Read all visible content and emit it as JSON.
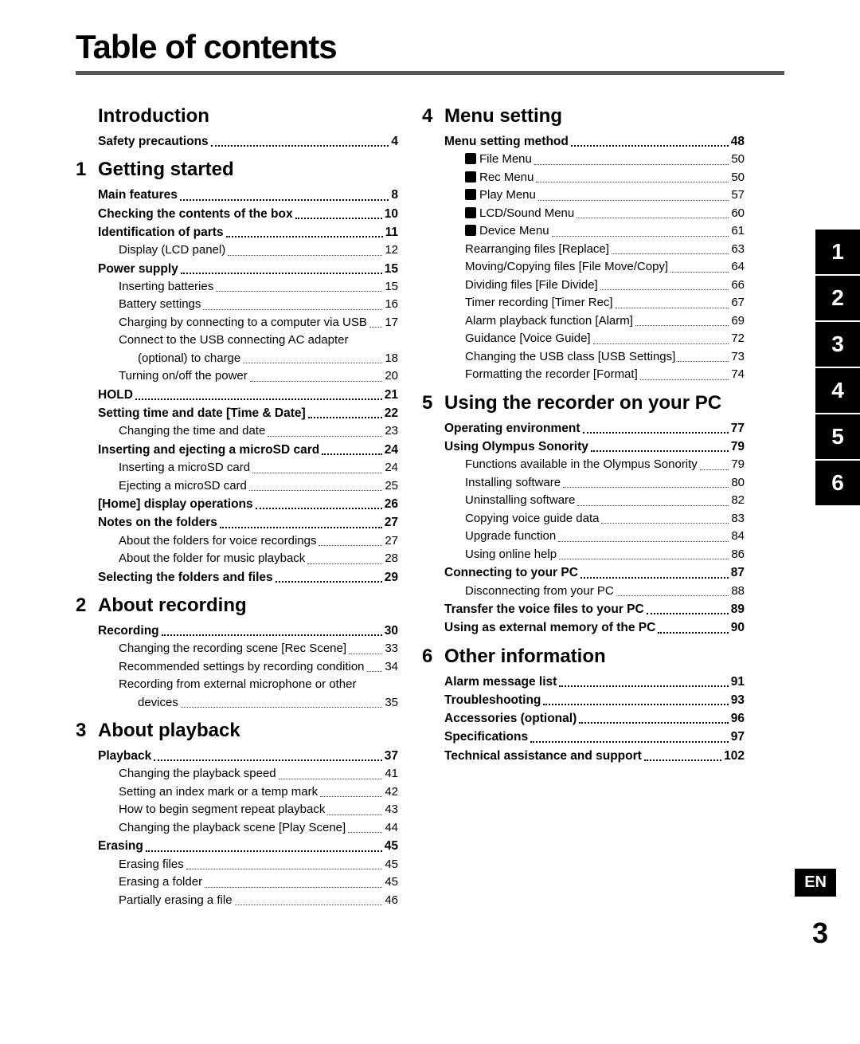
{
  "title": "Table of contents",
  "colors": {
    "accent": "#000000",
    "rule": "#555555",
    "text": "#000000",
    "bg": "#ffffff"
  },
  "sections": [
    {
      "num": "",
      "title": "Introduction",
      "col": 0,
      "items": [
        {
          "level": 1,
          "bold": true,
          "label": "Safety precautions",
          "page": "4"
        }
      ]
    },
    {
      "num": "1",
      "title": "Getting started",
      "col": 0,
      "items": [
        {
          "level": 1,
          "bold": true,
          "label": "Main features",
          "page": "8"
        },
        {
          "level": 1,
          "bold": true,
          "label": "Checking the contents of the box",
          "page": "10"
        },
        {
          "level": 1,
          "bold": true,
          "label": "Identification of parts",
          "page": "11"
        },
        {
          "level": 2,
          "bold": false,
          "label": "Display (LCD panel)",
          "page": "12"
        },
        {
          "level": 1,
          "bold": true,
          "label": "Power supply",
          "page": "15"
        },
        {
          "level": 2,
          "bold": false,
          "label": "Inserting batteries",
          "page": "15"
        },
        {
          "level": 2,
          "bold": false,
          "label": "Battery settings",
          "page": "16"
        },
        {
          "level": 2,
          "bold": false,
          "label": "Charging by connecting to a computer via USB",
          "page": "17"
        },
        {
          "level": 2,
          "bold": false,
          "label_pre": "Connect to the USB connecting AC adapter",
          "label": "(optional) to charge",
          "page": "18",
          "wrap_indent": 3
        },
        {
          "level": 2,
          "bold": false,
          "label": "Turning on/off the power",
          "page": "20"
        },
        {
          "level": 1,
          "bold": true,
          "label": "HOLD",
          "page": "21"
        },
        {
          "level": 1,
          "bold": true,
          "label": "Setting time and date [Time & Date]",
          "page": "22"
        },
        {
          "level": 2,
          "bold": false,
          "label": "Changing the time and date",
          "page": "23"
        },
        {
          "level": 1,
          "bold": true,
          "label": "Inserting and ejecting a microSD card",
          "page": "24"
        },
        {
          "level": 2,
          "bold": false,
          "label": "Inserting a microSD card",
          "page": "24"
        },
        {
          "level": 2,
          "bold": false,
          "label": "Ejecting a microSD card",
          "page": "25"
        },
        {
          "level": 1,
          "bold": true,
          "label": "[Home] display operations",
          "page": "26"
        },
        {
          "level": 1,
          "bold": true,
          "label": "Notes on the folders",
          "page": "27"
        },
        {
          "level": 2,
          "bold": false,
          "label": "About the folders for voice recordings",
          "page": "27"
        },
        {
          "level": 2,
          "bold": false,
          "label": "About the folder for music playback",
          "page": "28"
        },
        {
          "level": 1,
          "bold": true,
          "label": "Selecting the folders and files",
          "page": "29"
        }
      ]
    },
    {
      "num": "2",
      "title": "About recording",
      "col": 0,
      "items": [
        {
          "level": 1,
          "bold": true,
          "label": "Recording",
          "page": "30"
        },
        {
          "level": 2,
          "bold": false,
          "label": "Changing the recording scene [Rec Scene]",
          "page": "33"
        },
        {
          "level": 2,
          "bold": false,
          "label": "Recommended settings by recording condition",
          "page": "34"
        },
        {
          "level": 2,
          "bold": false,
          "label_pre": "Recording from external microphone or other",
          "label": "devices",
          "page": "35",
          "wrap_indent": 3
        }
      ]
    },
    {
      "num": "3",
      "title": "About playback",
      "col": 0,
      "items": [
        {
          "level": 1,
          "bold": true,
          "label": "Playback",
          "page": "37"
        },
        {
          "level": 2,
          "bold": false,
          "label": "Changing the playback speed",
          "page": "41"
        },
        {
          "level": 2,
          "bold": false,
          "label": "Setting an index mark or a temp mark",
          "page": "42"
        },
        {
          "level": 2,
          "bold": false,
          "label": "How to begin segment repeat playback",
          "page": "43"
        },
        {
          "level": 2,
          "bold": false,
          "label": "Changing the playback scene [Play Scene]",
          "page": "44"
        },
        {
          "level": 1,
          "bold": true,
          "label": "Erasing",
          "page": "45"
        },
        {
          "level": 2,
          "bold": false,
          "label": "Erasing files",
          "page": "45"
        },
        {
          "level": 2,
          "bold": false,
          "label": "Erasing a folder",
          "page": "45"
        },
        {
          "level": 2,
          "bold": false,
          "label": "Partially erasing a file",
          "page": "46"
        }
      ]
    },
    {
      "num": "4",
      "title": "Menu setting",
      "col": 1,
      "items": [
        {
          "level": 1,
          "bold": true,
          "label": "Menu setting method",
          "page": "48"
        },
        {
          "level": 2,
          "bold": false,
          "icon": true,
          "label": "File Menu",
          "page": "50"
        },
        {
          "level": 2,
          "bold": false,
          "icon": true,
          "label": "Rec Menu",
          "page": "50"
        },
        {
          "level": 2,
          "bold": false,
          "icon": true,
          "label": "Play Menu",
          "page": "57"
        },
        {
          "level": 2,
          "bold": false,
          "icon": true,
          "label": "LCD/Sound Menu",
          "page": "60"
        },
        {
          "level": 2,
          "bold": false,
          "icon": true,
          "label": "Device Menu",
          "page": "61"
        },
        {
          "level": 2,
          "bold": false,
          "label": "Rearranging files [Replace]",
          "page": "63"
        },
        {
          "level": 2,
          "bold": false,
          "label": "Moving/Copying files [File Move/Copy]",
          "page": "64"
        },
        {
          "level": 2,
          "bold": false,
          "label": "Dividing files [File Divide]",
          "page": "66"
        },
        {
          "level": 2,
          "bold": false,
          "label": "Timer recording [Timer Rec]",
          "page": "67"
        },
        {
          "level": 2,
          "bold": false,
          "label": "Alarm playback function [Alarm]",
          "page": "69"
        },
        {
          "level": 2,
          "bold": false,
          "label": "Guidance [Voice Guide]",
          "page": "72"
        },
        {
          "level": 2,
          "bold": false,
          "label": "Changing the USB class [USB Settings]",
          "page": "73"
        },
        {
          "level": 2,
          "bold": false,
          "label": "Formatting the recorder [Format]",
          "page": "74"
        }
      ]
    },
    {
      "num": "5",
      "title": "Using the recorder on your PC",
      "col": 1,
      "items": [
        {
          "level": 1,
          "bold": true,
          "label": "Operating environment",
          "page": "77"
        },
        {
          "level": 1,
          "bold": true,
          "label": "Using Olympus Sonority",
          "page": "79"
        },
        {
          "level": 2,
          "bold": false,
          "label": "Functions available in the Olympus Sonority",
          "page": "79"
        },
        {
          "level": 2,
          "bold": false,
          "label": "Installing software",
          "page": "80"
        },
        {
          "level": 2,
          "bold": false,
          "label": "Uninstalling software",
          "page": "82"
        },
        {
          "level": 2,
          "bold": false,
          "label": "Copying voice guide data",
          "page": "83"
        },
        {
          "level": 2,
          "bold": false,
          "label": "Upgrade function",
          "page": "84"
        },
        {
          "level": 2,
          "bold": false,
          "label": "Using online help",
          "page": "86"
        },
        {
          "level": 1,
          "bold": true,
          "label": "Connecting to your PC",
          "page": "87"
        },
        {
          "level": 2,
          "bold": false,
          "label": "Disconnecting from your PC",
          "page": "88"
        },
        {
          "level": 1,
          "bold": true,
          "label": "Transfer the voice files to your PC",
          "page": "89"
        },
        {
          "level": 1,
          "bold": true,
          "label": "Using as external memory of the PC",
          "page": "90"
        }
      ]
    },
    {
      "num": "6",
      "title": "Other information",
      "col": 1,
      "items": [
        {
          "level": 1,
          "bold": true,
          "label": "Alarm message list",
          "page": "91"
        },
        {
          "level": 1,
          "bold": true,
          "label": "Troubleshooting",
          "page": "93"
        },
        {
          "level": 1,
          "bold": true,
          "label": "Accessories (optional)",
          "page": "96"
        },
        {
          "level": 1,
          "bold": true,
          "label": "Specifications",
          "page": "97"
        },
        {
          "level": 1,
          "bold": true,
          "label": "Technical assistance and support",
          "page": "102"
        }
      ]
    }
  ],
  "tabs": [
    "1",
    "2",
    "3",
    "4",
    "5",
    "6"
  ],
  "lang": "EN",
  "page_number": "3"
}
